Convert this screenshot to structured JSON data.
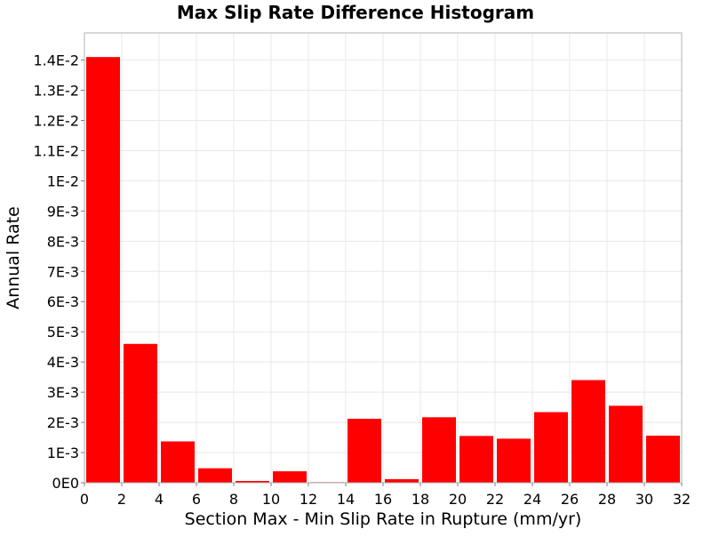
{
  "chart_data": {
    "type": "bar",
    "title": "Max Slip Rate Difference Histogram",
    "xlabel": "Section Max - Min Slip Rate in Rupture (mm/yr)",
    "ylabel": "Annual Rate",
    "xlim": [
      0,
      32
    ],
    "ylim": [
      0,
      0.0149
    ],
    "grid": true,
    "bin_width": 2,
    "bins": [
      {
        "x0": 0,
        "x1": 2,
        "value": 0.0141
      },
      {
        "x0": 2,
        "x1": 4,
        "value": 0.0046
      },
      {
        "x0": 4,
        "x1": 6,
        "value": 0.00137
      },
      {
        "x0": 6,
        "x1": 8,
        "value": 0.00048
      },
      {
        "x0": 8,
        "x1": 10,
        "value": 6e-05
      },
      {
        "x0": 10,
        "x1": 12,
        "value": 0.00038
      },
      {
        "x0": 12,
        "x1": 14,
        "value": 2e-05
      },
      {
        "x0": 14,
        "x1": 16,
        "value": 0.00212
      },
      {
        "x0": 16,
        "x1": 18,
        "value": 0.00012
      },
      {
        "x0": 18,
        "x1": 20,
        "value": 0.00217
      },
      {
        "x0": 20,
        "x1": 22,
        "value": 0.00155
      },
      {
        "x0": 22,
        "x1": 24,
        "value": 0.00146
      },
      {
        "x0": 24,
        "x1": 26,
        "value": 0.00234
      },
      {
        "x0": 26,
        "x1": 28,
        "value": 0.0034
      },
      {
        "x0": 28,
        "x1": 30,
        "value": 0.00255
      },
      {
        "x0": 30,
        "x1": 32,
        "value": 0.00156
      }
    ],
    "x_ticks": [
      {
        "value": 0,
        "label": "0"
      },
      {
        "value": 2,
        "label": "2"
      },
      {
        "value": 4,
        "label": "4"
      },
      {
        "value": 6,
        "label": "6"
      },
      {
        "value": 8,
        "label": "8"
      },
      {
        "value": 10,
        "label": "10"
      },
      {
        "value": 12,
        "label": "12"
      },
      {
        "value": 14,
        "label": "14"
      },
      {
        "value": 16,
        "label": "16"
      },
      {
        "value": 18,
        "label": "18"
      },
      {
        "value": 20,
        "label": "20"
      },
      {
        "value": 22,
        "label": "22"
      },
      {
        "value": 24,
        "label": "24"
      },
      {
        "value": 26,
        "label": "26"
      },
      {
        "value": 28,
        "label": "28"
      },
      {
        "value": 30,
        "label": "30"
      },
      {
        "value": 32,
        "label": "32"
      }
    ],
    "y_ticks": [
      {
        "value": 0,
        "label": "0E0"
      },
      {
        "value": 0.001,
        "label": "1E-3"
      },
      {
        "value": 0.002,
        "label": "2E-3"
      },
      {
        "value": 0.003,
        "label": "3E-3"
      },
      {
        "value": 0.004,
        "label": "4E-3"
      },
      {
        "value": 0.005,
        "label": "5E-3"
      },
      {
        "value": 0.006,
        "label": "6E-3"
      },
      {
        "value": 0.007,
        "label": "7E-3"
      },
      {
        "value": 0.008,
        "label": "8E-3"
      },
      {
        "value": 0.009,
        "label": "9E-3"
      },
      {
        "value": 0.01,
        "label": "1E-2"
      },
      {
        "value": 0.011,
        "label": "1.1E-2"
      },
      {
        "value": 0.012,
        "label": "1.2E-2"
      },
      {
        "value": 0.013,
        "label": "1.3E-2"
      },
      {
        "value": 0.014,
        "label": "1.4E-2"
      }
    ]
  },
  "colors": {
    "bar_fill": "#ff0000",
    "plot_background": "#ffffff",
    "gridline": "#e8e8e8",
    "plot_border": "#b0b0b0",
    "text": "#000000"
  }
}
